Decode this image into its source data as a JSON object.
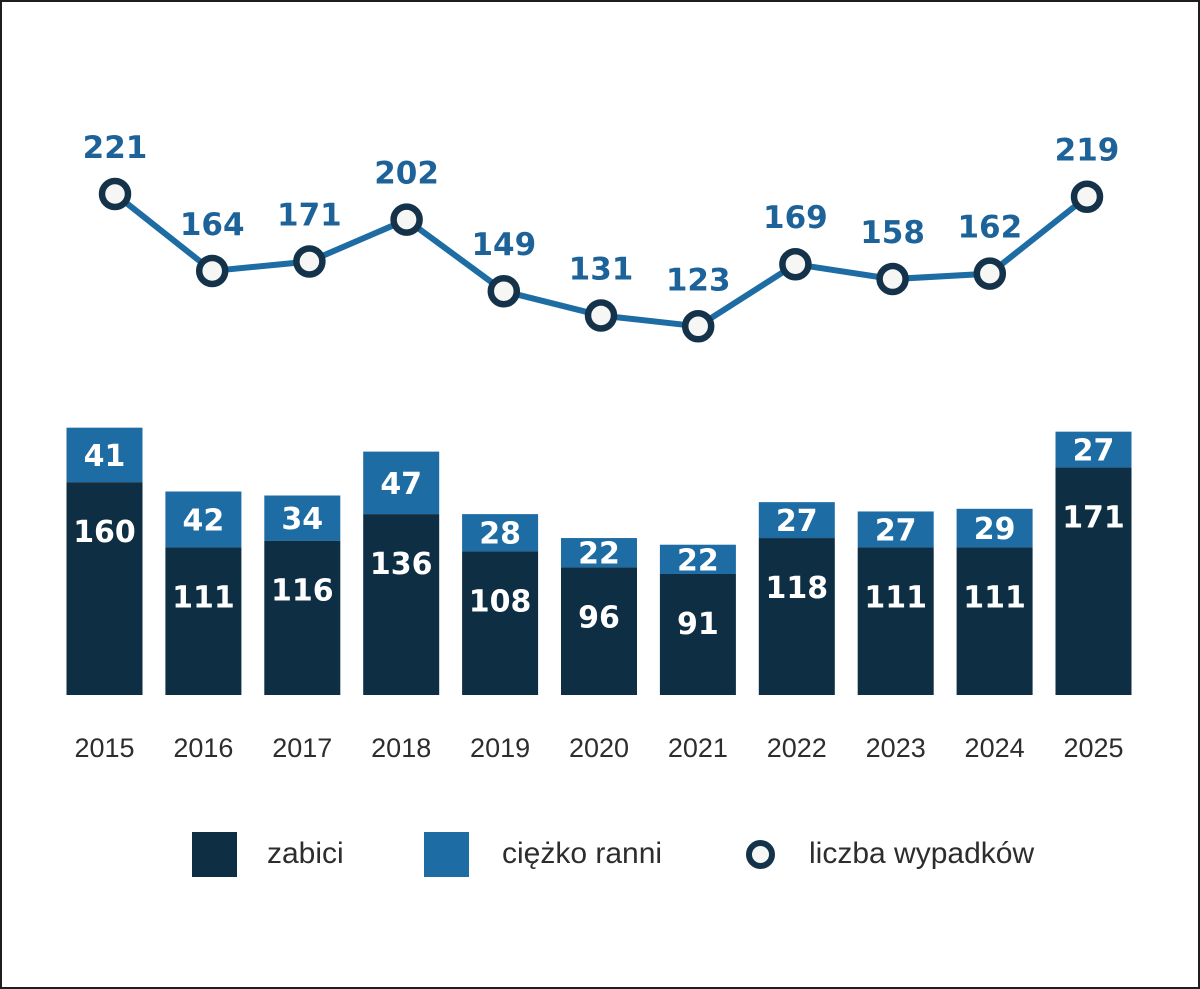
{
  "chart_data": {
    "type": "composed-bar-line",
    "categories": [
      "2015",
      "2016",
      "2017",
      "2018",
      "2019",
      "2020",
      "2021",
      "2022",
      "2023",
      "2024",
      "2025"
    ],
    "series": [
      {
        "name": "zabici",
        "type": "bar-stack-bottom",
        "color": "#0e2e43",
        "values": [
          160,
          111,
          116,
          136,
          108,
          96,
          91,
          118,
          111,
          111,
          171
        ]
      },
      {
        "name": "ciężko ranni",
        "type": "bar-stack-top",
        "color": "#1d6ca4",
        "values": [
          41,
          42,
          34,
          47,
          28,
          22,
          22,
          27,
          27,
          29,
          27
        ]
      },
      {
        "name": "liczba wypadków",
        "type": "line",
        "color": "#1d6ca4",
        "marker_fill": "#f6f6f4",
        "marker_stroke": "#14334a",
        "values": [
          221,
          164,
          171,
          202,
          149,
          131,
          123,
          169,
          158,
          162,
          219
        ]
      }
    ],
    "legend": [
      {
        "label": "zabici",
        "swatch": "square",
        "color": "#0e2e43"
      },
      {
        "label": "ciężko ranni",
        "swatch": "square",
        "color": "#1d6ca4"
      },
      {
        "label": "liczba wypadków",
        "swatch": "circle-outline",
        "color": "#14334a"
      }
    ],
    "value_label_color_line": "#1d6399",
    "value_label_color_bar": "#ffffff",
    "axis_label_color": "#2d2d2d",
    "grid": false,
    "legend_position": "bottom",
    "xlabel": "",
    "ylabel": "",
    "title": ""
  }
}
